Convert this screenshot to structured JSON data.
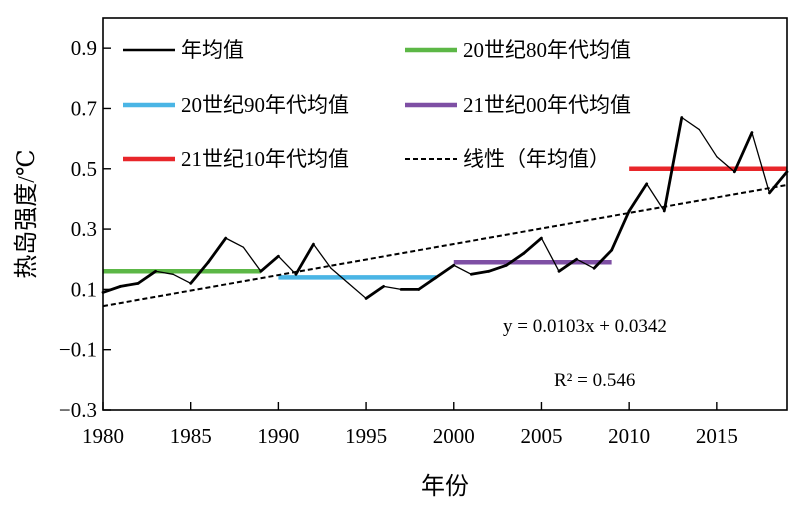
{
  "chart_data": {
    "type": "line",
    "xlabel": "年份",
    "ylabel": "热岛强度/℃",
    "xlim": [
      1980,
      2019
    ],
    "ylim": [
      -0.3,
      1.0
    ],
    "x_ticks": [
      1980,
      1985,
      1990,
      1995,
      2000,
      2005,
      2010,
      2015
    ],
    "y_ticks": [
      -0.3,
      -0.1,
      0.1,
      0.3,
      0.5,
      0.7,
      0.9
    ],
    "x_tick_labels": [
      "1980",
      "1985",
      "1990",
      "1995",
      "2000",
      "2005",
      "2010",
      "2015"
    ],
    "y_tick_labels": [
      "−0.3",
      "−0.1",
      "0.1",
      "0.3",
      "0.5",
      "0.7",
      "0.9"
    ],
    "grid": false,
    "legend_position": "top",
    "series": [
      {
        "name": "年均值",
        "kind": "line",
        "color": "#000000",
        "x": [
          1980,
          1981,
          1982,
          1983,
          1984,
          1985,
          1986,
          1987,
          1988,
          1989,
          1990,
          1991,
          1992,
          1993,
          1994,
          1995,
          1996,
          1997,
          1998,
          1999,
          2000,
          2001,
          2002,
          2003,
          2004,
          2005,
          2006,
          2007,
          2008,
          2009,
          2010,
          2011,
          2012,
          2013,
          2014,
          2015,
          2016,
          2017,
          2018,
          2019
        ],
        "y": [
          0.09,
          0.11,
          0.12,
          0.16,
          0.15,
          0.12,
          0.19,
          0.27,
          0.24,
          0.16,
          0.21,
          0.15,
          0.25,
          0.17,
          0.12,
          0.07,
          0.11,
          0.1,
          0.1,
          0.14,
          0.18,
          0.15,
          0.16,
          0.18,
          0.22,
          0.27,
          0.16,
          0.2,
          0.17,
          0.23,
          0.36,
          0.45,
          0.36,
          0.67,
          0.63,
          0.54,
          0.49,
          0.62,
          0.42,
          0.49
        ]
      },
      {
        "name": "20世纪80年代均值",
        "kind": "mean",
        "color": "#5cb746",
        "x": [
          1980,
          1989
        ],
        "y": 0.16
      },
      {
        "name": "20世纪90年代均值",
        "kind": "mean",
        "color": "#4ab5e5",
        "x": [
          1990,
          1999
        ],
        "y": 0.14
      },
      {
        "name": "21世纪00年代均值",
        "kind": "mean",
        "color": "#7e4fa4",
        "x": [
          2000,
          2009
        ],
        "y": 0.19
      },
      {
        "name": "21世纪10年代均值",
        "kind": "mean",
        "color": "#e8262a",
        "x": [
          2010,
          2019
        ],
        "y": 0.5
      },
      {
        "name": "线性（年均值）",
        "kind": "trend",
        "color": "#000000",
        "slope": 0.0103,
        "intercept": 0.0342
      }
    ],
    "annotations": {
      "equation": "y = 0.0103x + 0.0342",
      "r2": "R² = 0.546"
    }
  }
}
